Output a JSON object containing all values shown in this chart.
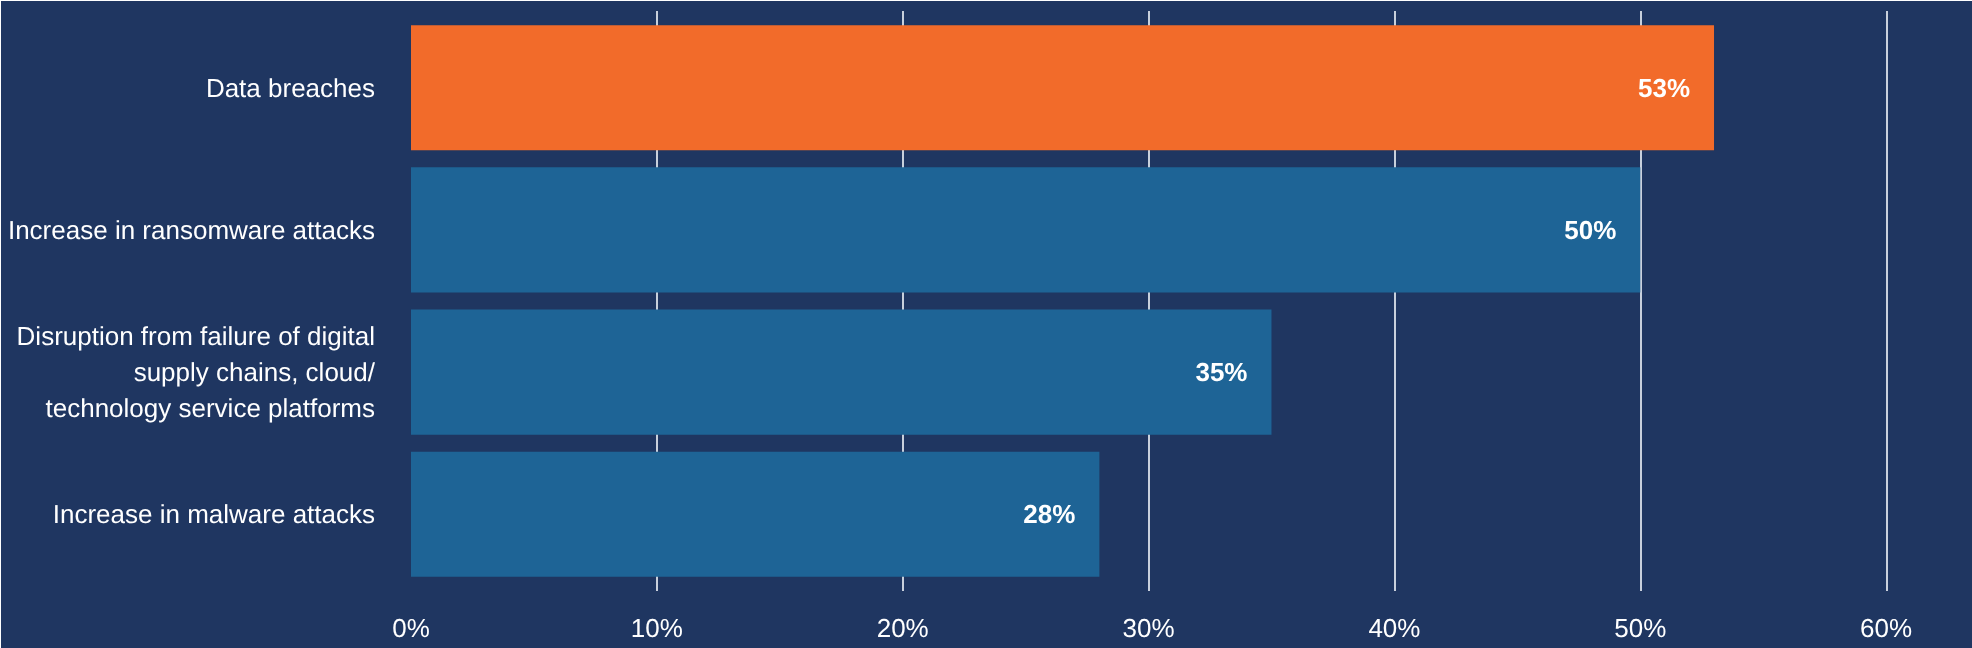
{
  "chart_data": {
    "type": "bar",
    "orientation": "horizontal",
    "categories": [
      "Data breaches",
      "Increase in ransomware attacks",
      "Disruption from failure of digital\nsupply chains, cloud/\ntechnology service platforms",
      "Increase in malware attacks"
    ],
    "values": [
      53,
      50,
      35,
      28
    ],
    "colors": [
      "#f26b2a",
      "#1e6496",
      "#1e6496",
      "#1e6496"
    ],
    "value_labels": [
      "53%",
      "50%",
      "35%",
      "28%"
    ],
    "xlim": [
      0,
      61.5
    ],
    "xticks": [
      {
        "value": 0,
        "label": "0%"
      },
      {
        "value": 10,
        "label": "10%"
      },
      {
        "value": 20,
        "label": "20%"
      },
      {
        "value": 30,
        "label": "30%"
      },
      {
        "value": 40,
        "label": "40%"
      },
      {
        "value": 50,
        "label": "50%"
      },
      {
        "value": 60,
        "label": "60%"
      }
    ],
    "grid": "x"
  }
}
